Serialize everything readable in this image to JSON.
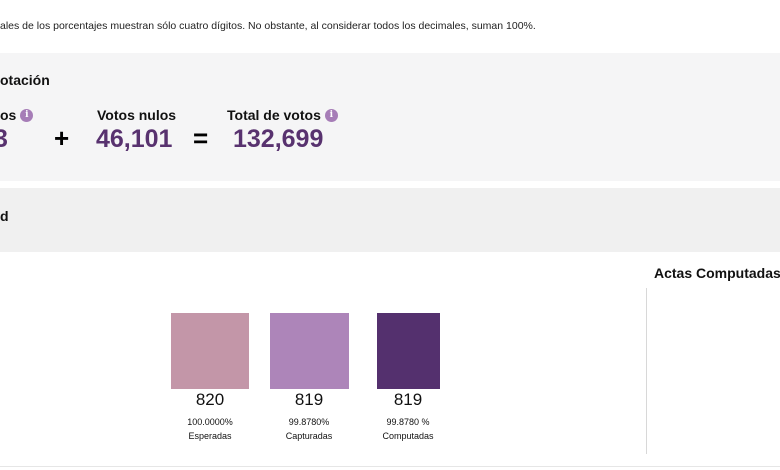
{
  "note": "ales de los porcentajes muestran sólo cuatro dígitos. No obstante, al considerar todos los decimales, suman 100%.",
  "votacion": {
    "title_partial": "otación",
    "left_label_partial": "os",
    "left_value_partial": "3",
    "plus": "+",
    "nulos_label": "Votos nulos",
    "nulos_value": "46,101",
    "equals": "=",
    "total_label": "Total de votos",
    "total_value": "132,699",
    "info_glyph": "i"
  },
  "section_b": {
    "title_partial": "d"
  },
  "actas": {
    "title": "Actas Computadas",
    "boxes": [
      {
        "value": "820",
        "percent": "100.0000%",
        "label": "Esperadas",
        "color": "#c396a8"
      },
      {
        "value": "819",
        "percent": "99.8780%",
        "label": "Capturadas",
        "color": "#ad85b9"
      },
      {
        "value": "819",
        "percent": "99.8780 %",
        "label": "Computadas",
        "color": "#54306e"
      }
    ]
  }
}
